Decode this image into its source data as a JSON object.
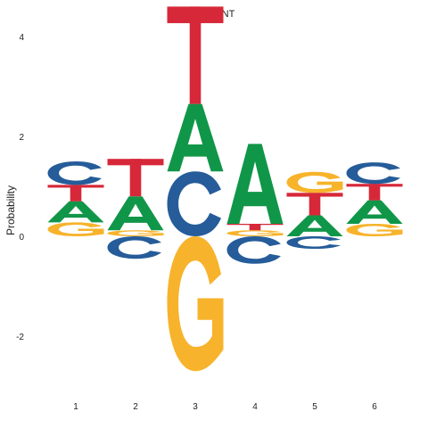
{
  "chart_data": {
    "type": "sequence-logo",
    "title": "NNT",
    "xlabel": "",
    "ylabel": "Probability",
    "ylim": [
      -2.75,
      4.1
    ],
    "yticks": [
      -2,
      0,
      2,
      4
    ],
    "positions": [
      "1",
      "2",
      "3",
      "4",
      "5",
      "6"
    ],
    "colors": {
      "A": "#109648",
      "C": "#255C99",
      "G": "#F7B32B",
      "T": "#D62839"
    },
    "stacks": [
      {
        "position": "1",
        "above": [
          {
            "letter": "G",
            "height": 0.28
          },
          {
            "letter": "A",
            "height": 0.42
          },
          {
            "letter": "T",
            "height": 0.33
          },
          {
            "letter": "C",
            "height": 0.47
          }
        ],
        "below": []
      },
      {
        "position": "2",
        "above": [
          {
            "letter": "G",
            "height": 0.12
          },
          {
            "letter": "A",
            "height": 0.68
          },
          {
            "letter": "T",
            "height": 0.75
          }
        ],
        "below": [
          {
            "letter": "C",
            "height": 0.45
          }
        ]
      },
      {
        "position": "3",
        "above": [
          {
            "letter": "C",
            "height": 1.3
          },
          {
            "letter": "A",
            "height": 1.35
          },
          {
            "letter": "T",
            "height": 1.95
          }
        ],
        "below": [
          {
            "letter": "G",
            "height": 2.7
          }
        ]
      },
      {
        "position": "4",
        "above": [
          {
            "letter": "G",
            "height": 0.12
          },
          {
            "letter": "T",
            "height": 0.13
          },
          {
            "letter": "A",
            "height": 1.6
          }
        ],
        "below": [
          {
            "letter": "C",
            "height": 0.55
          }
        ]
      },
      {
        "position": "5",
        "above": [
          {
            "letter": "A",
            "height": 0.42
          },
          {
            "letter": "T",
            "height": 0.45
          },
          {
            "letter": "G",
            "height": 0.42
          }
        ],
        "below": [
          {
            "letter": "C",
            "height": 0.25
          }
        ]
      },
      {
        "position": "6",
        "above": [
          {
            "letter": "G",
            "height": 0.25
          },
          {
            "letter": "A",
            "height": 0.47
          },
          {
            "letter": "T",
            "height": 0.33
          },
          {
            "letter": "C",
            "height": 0.43
          }
        ],
        "below": []
      }
    ]
  }
}
